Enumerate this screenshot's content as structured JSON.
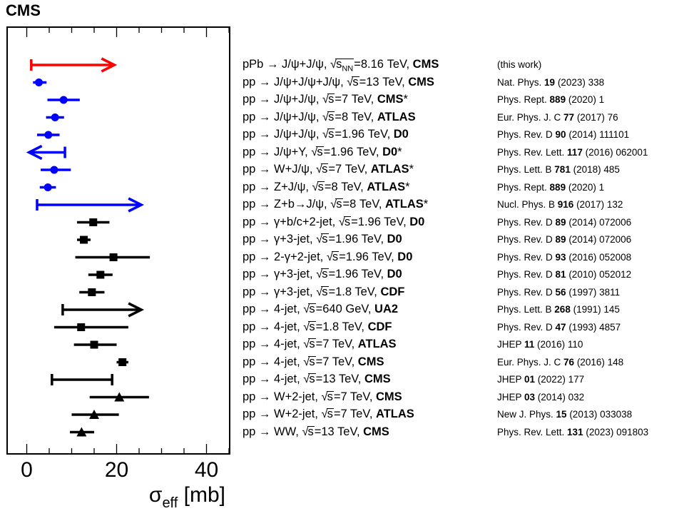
{
  "chart_data": {
    "type": "scatter",
    "title": "CMS",
    "xlabel": "σ_eff [mb]",
    "xlabel_parts": {
      "main": "σ",
      "sub": "eff",
      "unit": "[mb]"
    },
    "xlim": [
      -4,
      45
    ],
    "xticks": [
      "0",
      "20",
      "40"
    ],
    "grid": false,
    "series": [
      {
        "process": "pPb → J/ψ+J/ψ, √s_NN=8.16 TEV,",
        "experiment": "CMS",
        "reference": "(this work)",
        "marker": "arrow-right",
        "color": "#ff0000",
        "value": null,
        "lower_limit": 1.0,
        "arrow_to": 19.5
      },
      {
        "process": "pp → J/ψ+J/ψ+J/ψ, √s=13 TeV,",
        "experiment": "CMS",
        "reference": "Nat. Phys. 19 (2023) 338",
        "marker": "circle",
        "color": "#0000ff",
        "value": 2.7,
        "xerr": [
          1.3,
          1.7
        ]
      },
      {
        "process": "pp → J/ψ+J/ψ, √s=7 TeV,",
        "experiment": "CMS*",
        "reference": "Phys. Rept. 889 (2020) 1",
        "marker": "circle",
        "color": "#0000ff",
        "value": 8.2,
        "xerr": [
          3.6,
          3.6
        ]
      },
      {
        "process": "pp → J/ψ+J/ψ, √s=8 TeV,",
        "experiment": "ATLAS",
        "reference": "Eur. Phys. J. C 77 (2017) 76",
        "marker": "circle",
        "color": "#0000ff",
        "value": 6.3,
        "xerr": [
          2.0,
          2.0
        ]
      },
      {
        "process": "pp → J/ψ+J/ψ, √s=1.96 TeV,",
        "experiment": "D0",
        "reference": "Phys. Rev. D 90 (2014) 111101",
        "marker": "circle",
        "color": "#0000ff",
        "value": 4.8,
        "xerr": [
          2.5,
          2.5
        ]
      },
      {
        "process": "pp → J/ψ+Υ, √s=1.96 TeV,",
        "experiment": "D0*",
        "reference": "Phys. Rev. Lett. 117 (2016) 062001",
        "marker": "arrow-left",
        "color": "#0000ff",
        "value": null,
        "upper_limit": 8.5,
        "arrow_to": 0.5
      },
      {
        "process": "pp → W+J/ψ, √s=7 TeV,",
        "experiment": "ATLAS*",
        "reference": "Phys. Lett. B 781 (2018) 485",
        "marker": "circle",
        "color": "#0000ff",
        "value": 6.1,
        "xerr": [
          3.0,
          3.7
        ]
      },
      {
        "process": "pp → Z+J/ψ, √s=8 TeV,",
        "experiment": "ATLAS*",
        "reference": "Phys. Rept. 889 (2020) 1",
        "marker": "circle",
        "color": "#0000ff",
        "value": 4.7,
        "xerr": [
          1.8,
          1.8
        ]
      },
      {
        "process": "pp → Z+b→J/ψ, √s=8 TeV,",
        "experiment": "ATLAS*",
        "reference": "Nucl. Phys. B 916 (2017) 132",
        "marker": "arrow-right",
        "color": "#0000ff",
        "value": null,
        "lower_limit": 2.3,
        "arrow_to": 25.5
      },
      {
        "process": "pp → γ+b/c+2-jet, √s=1.96 TeV,",
        "experiment": "D0",
        "reference": "Phys. Rev. D 89 (2014) 072006",
        "marker": "square",
        "color": "#000000",
        "value": 14.8,
        "xerr": [
          3.6,
          3.6
        ]
      },
      {
        "process": "pp → γ+3-jet, √s=1.96 TeV,",
        "experiment": "D0",
        "reference": "Phys. Rev. D 89 (2014) 072006",
        "marker": "square",
        "color": "#000000",
        "value": 12.7,
        "xerr": [
          1.5,
          1.5
        ]
      },
      {
        "process": "pp → 2-γ+2-jet, √s=1.96 TeV,",
        "experiment": "D0",
        "reference": "Phys. Rev. D 93 (2016) 052008",
        "marker": "square",
        "color": "#000000",
        "value": 19.3,
        "xerr": [
          8.5,
          8.1
        ]
      },
      {
        "process": "pp → γ+3-jet, √s=1.96 TeV,",
        "experiment": "D0",
        "reference": "Phys. Rev. D 81 (2010) 052012",
        "marker": "square",
        "color": "#000000",
        "value": 16.4,
        "xerr": [
          2.7,
          2.7
        ]
      },
      {
        "process": "pp → γ+3-jet, √s=1.8 TeV,",
        "experiment": "CDF",
        "reference": "Phys. Rev. D 56 (1997) 3811",
        "marker": "square",
        "color": "#000000",
        "value": 14.5,
        "xerr": [
          2.8,
          2.8
        ]
      },
      {
        "process": "pp → 4-jet, √s=640 GeV,",
        "experiment": "UA2",
        "reference": "Phys. Lett. B 268 (1991) 145",
        "marker": "arrow-right",
        "color": "#000000",
        "value": null,
        "lower_limit": 8.0,
        "arrow_to": 25.5
      },
      {
        "process": "pp → 4-jet, √s=1.8 TeV,",
        "experiment": "CDF",
        "reference": "Phys. Rev. D 47 (1993) 4857",
        "marker": "square",
        "color": "#000000",
        "value": 12.1,
        "xerr": [
          6.0,
          10.5
        ]
      },
      {
        "process": "pp → 4-jet, √s=7 TeV,",
        "experiment": "ATLAS",
        "reference": "JHEP 11 (2016) 110",
        "marker": "square",
        "color": "#000000",
        "value": 15.0,
        "xerr": [
          4.5,
          5.0
        ]
      },
      {
        "process": "pp → 4-jet, √s=7 TeV,",
        "experiment": "CMS",
        "reference": "Eur. Phys. J. C 76 (2016) 148",
        "marker": "square",
        "color": "#000000",
        "value": 21.3,
        "xerr": [
          1.3,
          1.3
        ]
      },
      {
        "process": "pp → 4-jet, √s=13 TeV,",
        "experiment": "CMS",
        "reference": "JHEP 01 (2022) 177",
        "marker": "interval",
        "color": "#000000",
        "value": null,
        "range": [
          5.6,
          19.0
        ]
      },
      {
        "process": "pp → W+2-jet, √s=7 TeV,",
        "experiment": "CMS",
        "reference": "JHEP 03 (2014) 032",
        "marker": "triangle",
        "color": "#000000",
        "value": 20.6,
        "xerr": [
          6.6,
          6.6
        ]
      },
      {
        "process": "pp → W+2-jet, √s=7 TeV,",
        "experiment": "ATLAS",
        "reference": "New J. Phys. 15 (2013) 033038",
        "marker": "triangle",
        "color": "#000000",
        "value": 15.0,
        "xerr": [
          5.0,
          5.5
        ]
      },
      {
        "process": "pp → WW, √s=13 TeV,",
        "experiment": "CMS",
        "reference": "Phys. Rev. Lett. 131 (2023) 091803",
        "marker": "triangle",
        "color": "#000000",
        "value": 12.2,
        "xerr": [
          2.6,
          2.8
        ]
      }
    ]
  }
}
